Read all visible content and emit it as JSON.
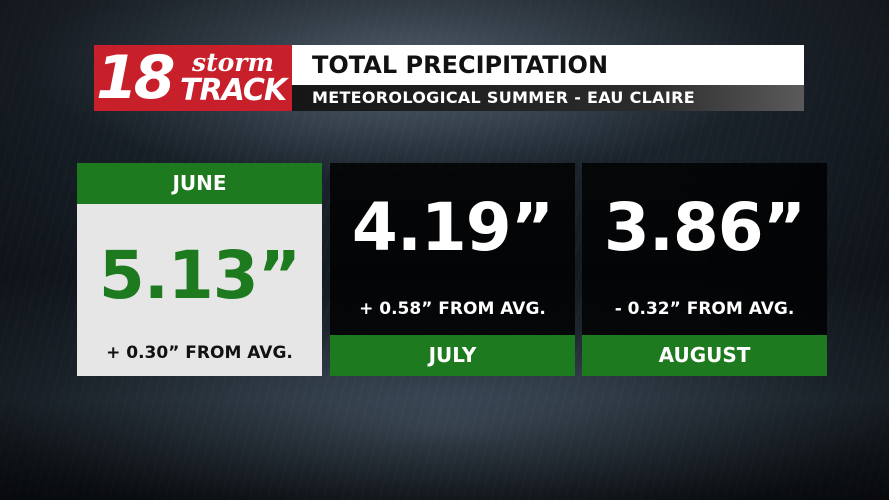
{
  "logo": {
    "number": "18",
    "word_top": "storm",
    "word_bottom": "TRACK"
  },
  "header": {
    "title": "TOTAL PRECIPITATION",
    "subtitle": "METEOROLOGICAL SUMMER - EAU CLAIRE"
  },
  "colors": {
    "brand_red": "#c8202b",
    "accent_green": "#1e7a1e",
    "panel_dark": "#000000",
    "panel_light": "#e6e6e6"
  },
  "months": [
    {
      "name": "JUNE",
      "total": "5.13”",
      "departure": "+ 0.30” FROM AVG."
    },
    {
      "name": "JULY",
      "total": "4.19”",
      "departure": "+ 0.58” FROM AVG."
    },
    {
      "name": "AUGUST",
      "total": "3.86”",
      "departure": "- 0.32” FROM AVG."
    }
  ]
}
